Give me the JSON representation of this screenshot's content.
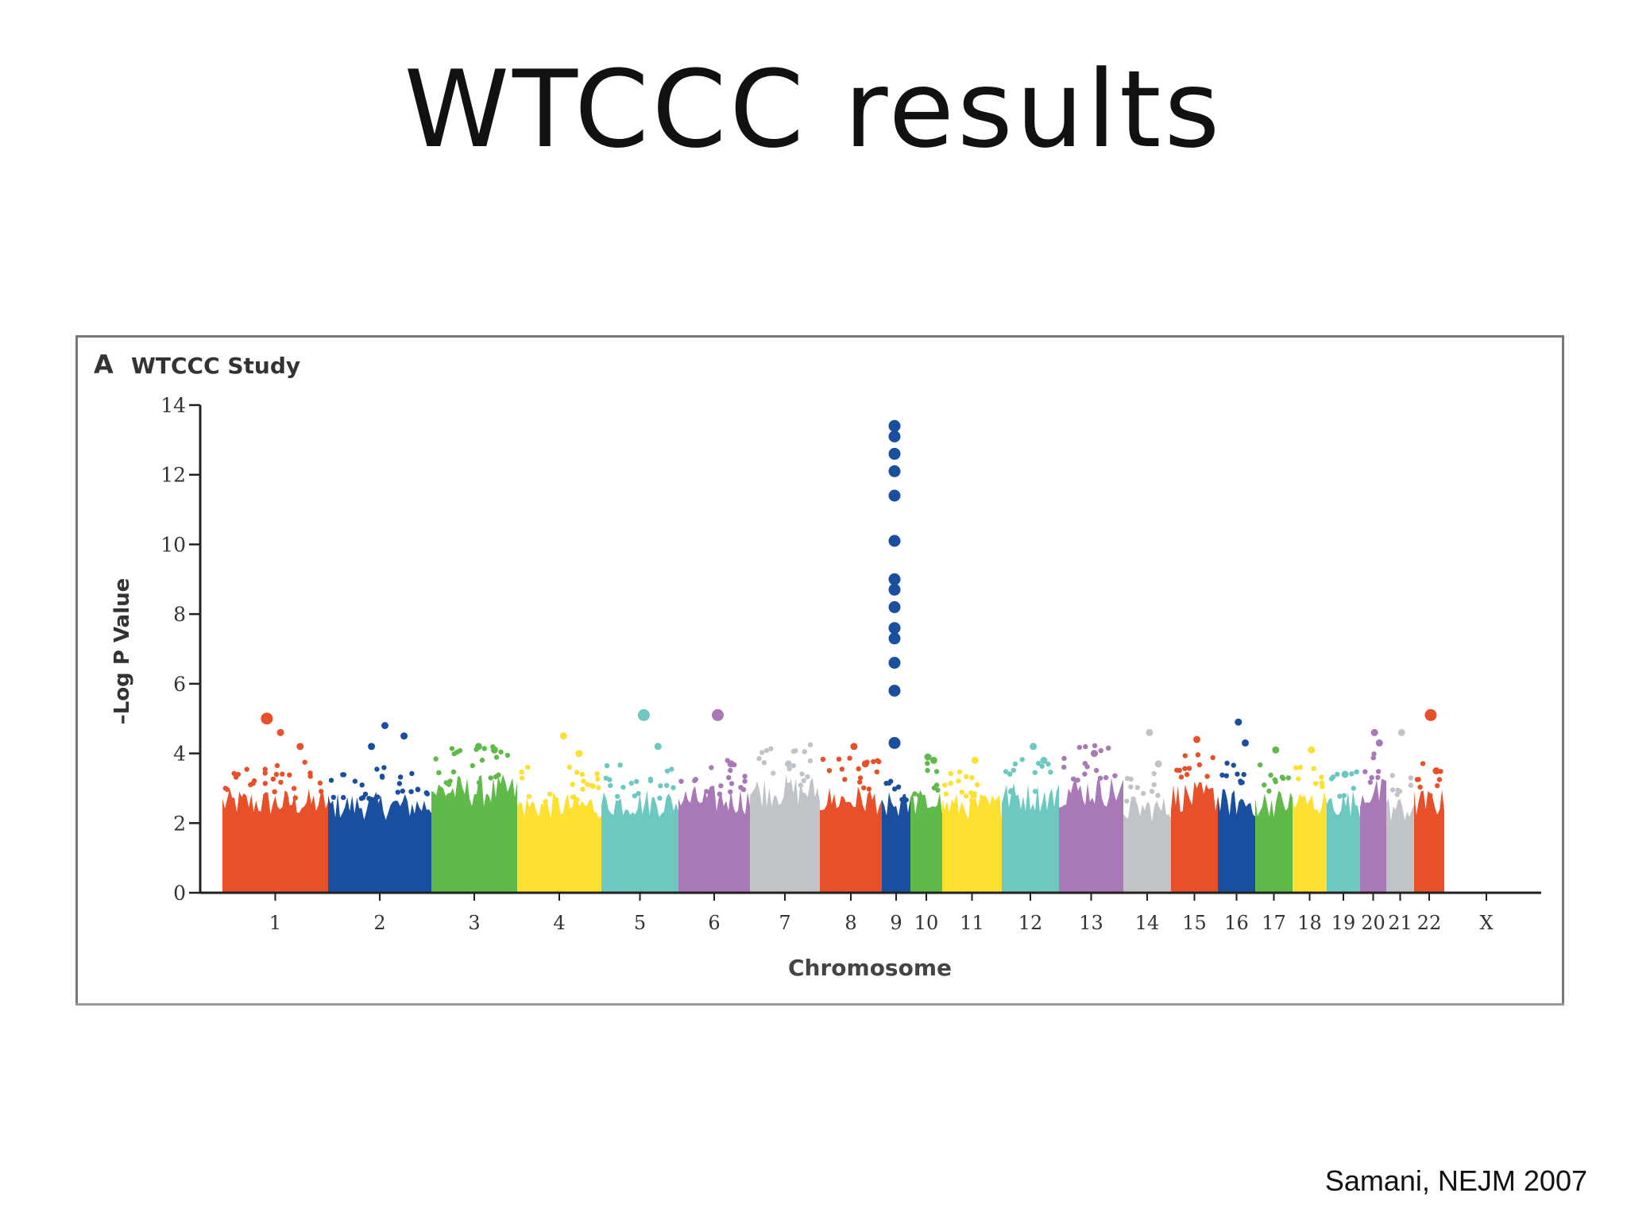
{
  "slide": {
    "title": "WTCCC results",
    "citation": "Samani, NEJM 2007"
  },
  "chart_data": {
    "type": "scatter",
    "panel_label": "A",
    "title": "WTCCC Study",
    "xlabel": "Chromosome",
    "ylabel": "–Log P Value",
    "ylim": [
      0,
      14
    ],
    "yticks": [
      0,
      2,
      4,
      6,
      8,
      10,
      12,
      14
    ],
    "grid": false,
    "categories": [
      "1",
      "2",
      "3",
      "4",
      "5",
      "6",
      "7",
      "8",
      "9",
      "10",
      "11",
      "12",
      "13",
      "14",
      "15",
      "16",
      "17",
      "18",
      "19",
      "20",
      "21",
      "22",
      "X"
    ],
    "series": [
      {
        "chromosome": "1",
        "color": "#e8502a",
        "typical_max": 3.0,
        "peaks": [
          4.6,
          4.2,
          5.0
        ]
      },
      {
        "chromosome": "2",
        "color": "#1a4fa0",
        "typical_max": 2.9,
        "peaks": [
          4.8,
          4.5,
          4.2
        ]
      },
      {
        "chromosome": "3",
        "color": "#5fba4a",
        "typical_max": 3.4,
        "peaks": [
          4.2,
          4.1
        ]
      },
      {
        "chromosome": "4",
        "color": "#fde030",
        "typical_max": 2.9,
        "peaks": [
          4.5,
          4.0
        ]
      },
      {
        "chromosome": "5",
        "color": "#6cc9c1",
        "typical_max": 3.0,
        "peaks": [
          5.1,
          4.2
        ]
      },
      {
        "chromosome": "6",
        "color": "#a878b7",
        "typical_max": 3.1,
        "peaks": [
          5.1,
          3.7
        ]
      },
      {
        "chromosome": "7",
        "color": "#c0c4c8",
        "typical_max": 3.4,
        "peaks": [
          3.7
        ]
      },
      {
        "chromosome": "8",
        "color": "#e8502a",
        "typical_max": 3.1,
        "peaks": [
          4.2,
          3.7
        ]
      },
      {
        "chromosome": "9",
        "color": "#1a4fa0",
        "typical_max": 2.9,
        "peaks": [
          13.4,
          13.1,
          12.6,
          12.1,
          11.4,
          10.1,
          9.0,
          8.7,
          8.2,
          7.6,
          7.3,
          6.6,
          5.8,
          4.3
        ]
      },
      {
        "chromosome": "10",
        "color": "#5fba4a",
        "typical_max": 3.0,
        "peaks": [
          3.9,
          3.8
        ]
      },
      {
        "chromosome": "11",
        "color": "#fde030",
        "typical_max": 2.9,
        "peaks": [
          3.8
        ]
      },
      {
        "chromosome": "12",
        "color": "#6cc9c1",
        "typical_max": 3.2,
        "peaks": [
          4.2,
          3.8
        ]
      },
      {
        "chromosome": "13",
        "color": "#a878b7",
        "typical_max": 3.4,
        "peaks": [
          4.0
        ]
      },
      {
        "chromosome": "14",
        "color": "#c0c4c8",
        "typical_max": 2.8,
        "peaks": [
          4.6,
          3.7
        ]
      },
      {
        "chromosome": "15",
        "color": "#e8502a",
        "typical_max": 3.2,
        "peaks": [
          4.4
        ]
      },
      {
        "chromosome": "16",
        "color": "#1a4fa0",
        "typical_max": 3.0,
        "peaks": [
          4.9,
          4.3
        ]
      },
      {
        "chromosome": "17",
        "color": "#5fba4a",
        "typical_max": 3.0,
        "peaks": [
          4.1
        ]
      },
      {
        "chromosome": "18",
        "color": "#fde030",
        "typical_max": 3.0,
        "peaks": [
          4.1
        ]
      },
      {
        "chromosome": "19",
        "color": "#6cc9c1",
        "typical_max": 3.0,
        "peaks": [
          3.4
        ]
      },
      {
        "chromosome": "20",
        "color": "#a878b7",
        "typical_max": 3.3,
        "peaks": [
          4.6,
          4.3
        ]
      },
      {
        "chromosome": "21",
        "color": "#c0c4c8",
        "typical_max": 2.8,
        "peaks": [
          4.6
        ]
      },
      {
        "chromosome": "22",
        "color": "#e8502a",
        "typical_max": 3.0,
        "peaks": [
          5.1,
          3.5
        ]
      },
      {
        "chromosome": "X",
        "color": "#ffffff",
        "typical_max": 0,
        "peaks": []
      }
    ]
  }
}
